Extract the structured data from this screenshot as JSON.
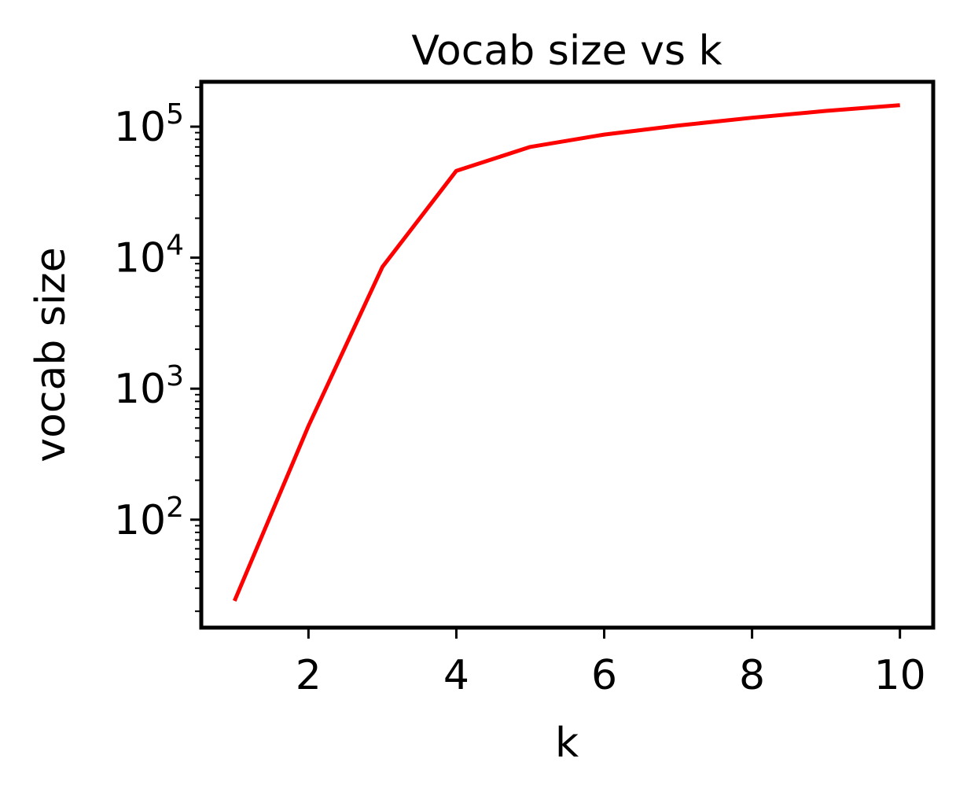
{
  "chart_data": {
    "type": "line",
    "title": "Vocab size vs k",
    "xlabel": "k",
    "ylabel": "vocab size",
    "x_ticks": [
      "2",
      "4",
      "6",
      "8",
      "10"
    ],
    "y_ticks": [
      {
        "base": "10",
        "exp": "2"
      },
      {
        "base": "10",
        "exp": "3"
      },
      {
        "base": "10",
        "exp": "4"
      },
      {
        "base": "10",
        "exp": "5"
      }
    ],
    "xlim": [
      0.55,
      10.45
    ],
    "ylim": [
      15,
      220000
    ],
    "yscale": "log",
    "grid": false,
    "series": [
      {
        "color": "#ff0000",
        "x": [
          1,
          2,
          3,
          4,
          5,
          6,
          7,
          8,
          9,
          10
        ],
        "y": [
          24,
          520,
          8500,
          46000,
          70000,
          87000,
          102000,
          117000,
          132000,
          146000
        ]
      }
    ]
  }
}
